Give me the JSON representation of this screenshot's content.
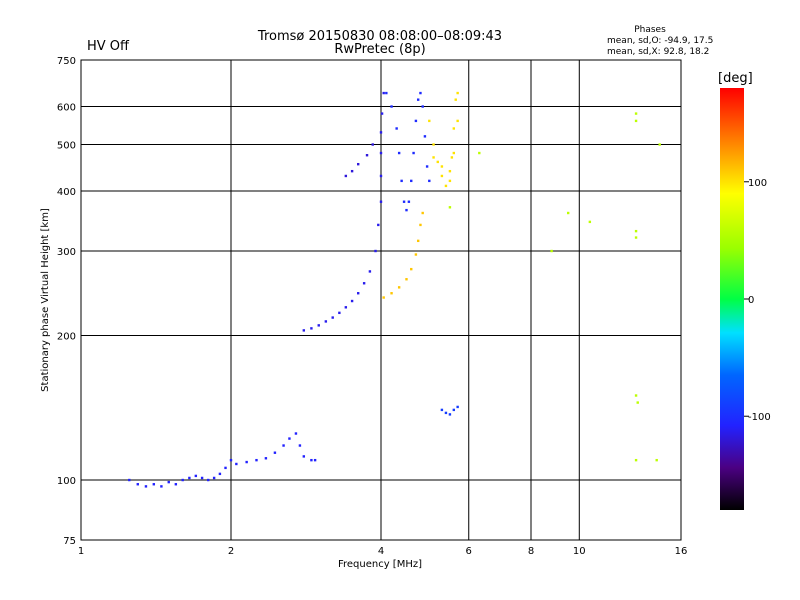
{
  "status": {
    "label": "HV Off",
    "color": "#cc0000"
  },
  "header": {
    "title": "Tromsø 20150830 08:08:00–08:09:43",
    "subtitle": "RwPretec (8p)"
  },
  "phases": {
    "title": "Phases",
    "line_o": "mean, sd,O: -94.9, 17.5",
    "line_x": "mean, sd,X:  92.8, 18.2"
  },
  "colorbar": {
    "label": "[deg]",
    "ticks": [
      {
        "value": 100,
        "label": "100"
      },
      {
        "value": 0,
        "label": "0"
      },
      {
        "value": -100,
        "label": "-100"
      }
    ],
    "range": [
      -180,
      180
    ],
    "scheme": "rainbow (black-violet-blue-cyan-green-yellow-orange-red)"
  },
  "chart_data": {
    "type": "scatter",
    "xlabel": "Frequency [MHz]",
    "ylabel": "Stationary phase Virtual Height [km]",
    "xscale": "log",
    "yscale": "log",
    "xlim": [
      1,
      16
    ],
    "ylim": [
      75,
      750
    ],
    "grid": true,
    "x_ticks": [
      {
        "value": 1,
        "label": "1"
      },
      {
        "value": 2,
        "label": "2"
      },
      {
        "value": 4,
        "label": "4"
      },
      {
        "value": 6,
        "label": "6"
      },
      {
        "value": 8,
        "label": "8"
      },
      {
        "value": 10,
        "label": "10"
      },
      {
        "value": 16,
        "label": "16"
      }
    ],
    "y_ticks": [
      {
        "value": 75,
        "label": "75"
      },
      {
        "value": 100,
        "label": "100"
      },
      {
        "value": 200,
        "label": "200"
      },
      {
        "value": 300,
        "label": "300"
      },
      {
        "value": 400,
        "label": "400"
      },
      {
        "value": 500,
        "label": "500"
      },
      {
        "value": 600,
        "label": "600"
      },
      {
        "value": 750,
        "label": "750"
      }
    ],
    "series": [
      {
        "points": [
          [
            1.25,
            100
          ],
          [
            1.3,
            98
          ],
          [
            1.35,
            97
          ],
          [
            1.4,
            98
          ],
          [
            1.45,
            97
          ],
          [
            1.5,
            99
          ],
          [
            1.55,
            98
          ],
          [
            1.6,
            100
          ],
          [
            1.65,
            101
          ],
          [
            1.7,
            102
          ],
          [
            1.75,
            101
          ],
          [
            1.8,
            100
          ],
          [
            1.85,
            101
          ],
          [
            1.9,
            103
          ],
          [
            1.95,
            106
          ],
          [
            2.0,
            110
          ],
          [
            2.05,
            108
          ],
          [
            2.15,
            109
          ],
          [
            2.25,
            110
          ],
          [
            2.35,
            111
          ],
          [
            2.45,
            114
          ],
          [
            2.55,
            118
          ],
          [
            2.62,
            122
          ],
          [
            2.7,
            125
          ],
          [
            2.75,
            118
          ],
          [
            2.8,
            112
          ],
          [
            2.9,
            110
          ],
          [
            2.95,
            110
          ]
        ],
        "phase": -110
      },
      {
        "points": [
          [
            2.8,
            205
          ],
          [
            2.9,
            207
          ],
          [
            3.0,
            210
          ],
          [
            3.1,
            214
          ],
          [
            3.2,
            218
          ],
          [
            3.3,
            223
          ],
          [
            3.4,
            229
          ],
          [
            3.5,
            236
          ],
          [
            3.6,
            245
          ],
          [
            3.7,
            257
          ],
          [
            3.8,
            272
          ],
          [
            3.9,
            300
          ],
          [
            3.95,
            340
          ],
          [
            4.0,
            380
          ],
          [
            4.0,
            430
          ],
          [
            4.0,
            480
          ],
          [
            4.0,
            530
          ],
          [
            4.02,
            580
          ],
          [
            4.05,
            640
          ]
        ],
        "phase": -115
      },
      {
        "points": [
          [
            3.4,
            430
          ],
          [
            3.5,
            440
          ],
          [
            3.6,
            455
          ],
          [
            3.75,
            475
          ],
          [
            3.85,
            500
          ]
        ],
        "phase": -120
      },
      {
        "points": [
          [
            4.1,
            640
          ],
          [
            4.2,
            600
          ],
          [
            4.3,
            540
          ],
          [
            4.35,
            480
          ],
          [
            4.4,
            420
          ],
          [
            4.45,
            380
          ],
          [
            4.5,
            365
          ],
          [
            4.55,
            380
          ],
          [
            4.6,
            420
          ],
          [
            4.65,
            480
          ],
          [
            4.7,
            560
          ],
          [
            4.75,
            620
          ],
          [
            4.8,
            640
          ],
          [
            4.85,
            600
          ],
          [
            4.9,
            520
          ],
          [
            4.95,
            450
          ],
          [
            5.0,
            420
          ]
        ],
        "phase": -105
      },
      {
        "points": [
          [
            4.05,
            240
          ],
          [
            4.2,
            245
          ],
          [
            4.35,
            252
          ],
          [
            4.5,
            262
          ],
          [
            4.6,
            275
          ],
          [
            4.7,
            295
          ],
          [
            4.75,
            315
          ],
          [
            4.8,
            340
          ],
          [
            4.85,
            360
          ]
        ],
        "phase": 110
      },
      {
        "points": [
          [
            5.0,
            560
          ],
          [
            5.1,
            500
          ],
          [
            5.2,
            460
          ],
          [
            5.3,
            430
          ],
          [
            5.4,
            410
          ],
          [
            5.5,
            420
          ],
          [
            5.55,
            470
          ],
          [
            5.6,
            540
          ],
          [
            5.65,
            620
          ],
          [
            5.7,
            640
          ],
          [
            5.7,
            560
          ],
          [
            5.6,
            480
          ],
          [
            5.5,
            440
          ],
          [
            5.3,
            450
          ],
          [
            5.1,
            470
          ]
        ],
        "phase": 100
      },
      {
        "points": [
          [
            5.3,
            140
          ],
          [
            5.4,
            138
          ],
          [
            5.5,
            137
          ],
          [
            5.6,
            140
          ],
          [
            5.7,
            142
          ]
        ],
        "phase": -95
      },
      {
        "points": [
          [
            13.0,
            580
          ],
          [
            13.0,
            560
          ],
          [
            13.0,
            330
          ],
          [
            13.0,
            320
          ],
          [
            13.0,
            150
          ],
          [
            13.1,
            145
          ],
          [
            13.0,
            110
          ],
          [
            14.3,
            110
          ],
          [
            14.5,
            500
          ],
          [
            9.5,
            360
          ],
          [
            10.5,
            345
          ],
          [
            8.8,
            300
          ],
          [
            6.3,
            480
          ],
          [
            5.5,
            370
          ]
        ],
        "phase": 60
      }
    ]
  }
}
